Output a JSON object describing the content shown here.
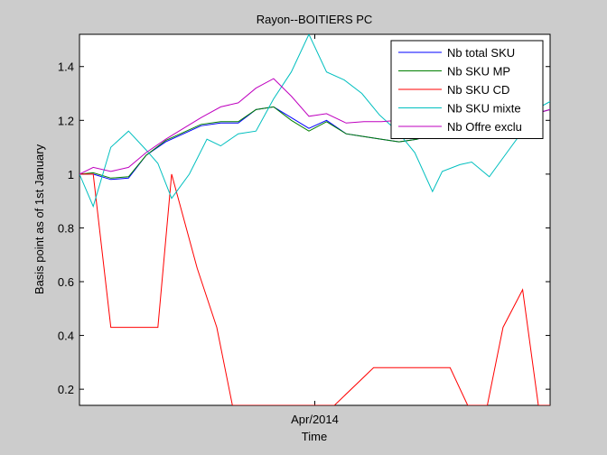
{
  "chart_data": {
    "type": "line",
    "title": "Rayon--BOITIERS PC",
    "xlabel": "Time",
    "ylabel": "Basis point as of 1st January",
    "ylim": [
      0.14,
      1.52
    ],
    "y_ticks": [
      0.2,
      0.4,
      0.6,
      0.8,
      1,
      1.2,
      1.4
    ],
    "y_tick_labels": [
      "0.2",
      "0.4",
      "0.6",
      "0.8",
      "1",
      "1.2",
      "1.4"
    ],
    "x_ticks": [
      {
        "x": 12,
        "label": "Apr/2014"
      }
    ],
    "xlim": [
      0,
      24
    ],
    "legend_position": "top-right",
    "grid": false,
    "series": [
      {
        "name": "Nb total SKU",
        "color": "#0000ff",
        "points": [
          [
            0,
            1.0
          ],
          [
            0.7,
            1.0
          ],
          [
            1.6,
            0.98
          ],
          [
            2.5,
            0.985
          ],
          [
            3.4,
            1.07
          ],
          [
            4.4,
            1.12
          ],
          [
            5.3,
            1.15
          ],
          [
            6.2,
            1.18
          ],
          [
            7.2,
            1.19
          ],
          [
            8.1,
            1.19
          ],
          [
            9.0,
            1.24
          ],
          [
            9.9,
            1.25
          ],
          [
            10.8,
            1.21
          ],
          [
            11.7,
            1.17
          ],
          [
            12.6,
            1.2
          ],
          [
            13.6,
            1.15
          ],
          [
            14.5,
            1.14
          ],
          [
            15.4,
            1.13
          ],
          [
            16.3,
            1.12
          ],
          [
            17.2,
            1.13
          ],
          [
            18.1,
            1.15
          ],
          [
            19.0,
            1.17
          ],
          [
            19.9,
            1.19
          ],
          [
            20.8,
            1.2
          ],
          [
            21.7,
            1.22
          ],
          [
            22.6,
            1.23
          ],
          [
            23.5,
            1.23
          ],
          [
            24,
            1.24
          ]
        ]
      },
      {
        "name": "Nb SKU MP",
        "color": "#007f00",
        "points": [
          [
            0,
            1.0
          ],
          [
            0.7,
            1.005
          ],
          [
            1.6,
            0.985
          ],
          [
            2.5,
            0.99
          ],
          [
            3.4,
            1.07
          ],
          [
            4.4,
            1.125
          ],
          [
            5.3,
            1.155
          ],
          [
            6.2,
            1.185
          ],
          [
            7.2,
            1.195
          ],
          [
            8.1,
            1.195
          ],
          [
            9.0,
            1.24
          ],
          [
            9.9,
            1.25
          ],
          [
            10.8,
            1.2
          ],
          [
            11.7,
            1.16
          ],
          [
            12.6,
            1.195
          ],
          [
            13.6,
            1.15
          ],
          [
            14.5,
            1.14
          ],
          [
            15.4,
            1.13
          ],
          [
            16.3,
            1.12
          ],
          [
            17.2,
            1.13
          ],
          [
            18.1,
            1.15
          ],
          [
            19.0,
            1.17
          ],
          [
            19.9,
            1.19
          ],
          [
            20.8,
            1.2
          ],
          [
            21.7,
            1.22
          ],
          [
            22.6,
            1.23
          ],
          [
            23.5,
            1.23
          ],
          [
            24,
            1.24
          ]
        ]
      },
      {
        "name": "Nb SKU CD",
        "color": "#ff0000",
        "points": [
          [
            0,
            1.0
          ],
          [
            0.7,
            1.0
          ],
          [
            1.6,
            0.43
          ],
          [
            2.5,
            0.43
          ],
          [
            3.4,
            0.43
          ],
          [
            4.0,
            0.43
          ],
          [
            4.7,
            1.0
          ],
          [
            6.0,
            0.65
          ],
          [
            7.0,
            0.43
          ],
          [
            7.8,
            0.14
          ],
          [
            13.0,
            0.14
          ],
          [
            15.0,
            0.28
          ],
          [
            16.3,
            0.28
          ],
          [
            17.6,
            0.28
          ],
          [
            18.9,
            0.28
          ],
          [
            19.8,
            0.14
          ],
          [
            20.8,
            0.14
          ],
          [
            21.6,
            0.43
          ],
          [
            22.6,
            0.57
          ],
          [
            23.4,
            0.14
          ],
          [
            24,
            0.14
          ]
        ]
      },
      {
        "name": "Nb SKU mixte",
        "color": "#00bfbf",
        "points": [
          [
            0,
            1.0
          ],
          [
            0.7,
            0.88
          ],
          [
            1.6,
            1.1
          ],
          [
            2.5,
            1.16
          ],
          [
            3.4,
            1.09
          ],
          [
            4.0,
            1.04
          ],
          [
            4.7,
            0.91
          ],
          [
            5.6,
            1.0
          ],
          [
            6.5,
            1.13
          ],
          [
            7.2,
            1.105
          ],
          [
            8.1,
            1.15
          ],
          [
            9.0,
            1.16
          ],
          [
            9.9,
            1.28
          ],
          [
            10.8,
            1.38
          ],
          [
            11.7,
            1.52
          ],
          [
            12.6,
            1.38
          ],
          [
            13.5,
            1.35
          ],
          [
            14.4,
            1.3
          ],
          [
            15.3,
            1.22
          ],
          [
            16.2,
            1.16
          ],
          [
            17.1,
            1.08
          ],
          [
            18.0,
            0.935
          ],
          [
            18.5,
            1.01
          ],
          [
            19.4,
            1.035
          ],
          [
            20.0,
            1.045
          ],
          [
            20.9,
            0.99
          ],
          [
            21.8,
            1.08
          ],
          [
            22.6,
            1.16
          ],
          [
            23.5,
            1.25
          ],
          [
            24,
            1.27
          ]
        ]
      },
      {
        "name": "Nb Offre exclu",
        "color": "#bf00bf",
        "points": [
          [
            0,
            1.0
          ],
          [
            0.7,
            1.025
          ],
          [
            1.6,
            1.01
          ],
          [
            2.5,
            1.025
          ],
          [
            3.4,
            1.08
          ],
          [
            4.4,
            1.13
          ],
          [
            5.3,
            1.17
          ],
          [
            6.2,
            1.21
          ],
          [
            7.2,
            1.25
          ],
          [
            8.1,
            1.265
          ],
          [
            9.0,
            1.32
          ],
          [
            9.9,
            1.355
          ],
          [
            10.8,
            1.29
          ],
          [
            11.7,
            1.215
          ],
          [
            12.6,
            1.225
          ],
          [
            13.6,
            1.19
          ],
          [
            14.5,
            1.195
          ],
          [
            15.4,
            1.195
          ],
          [
            16.3,
            1.2
          ],
          [
            17.2,
            1.21
          ],
          [
            18.1,
            1.21
          ],
          [
            19.0,
            1.2
          ],
          [
            19.9,
            1.21
          ],
          [
            20.8,
            1.21
          ],
          [
            21.7,
            1.22
          ],
          [
            22.6,
            1.22
          ],
          [
            23.5,
            1.23
          ],
          [
            24,
            1.24
          ]
        ]
      }
    ]
  }
}
